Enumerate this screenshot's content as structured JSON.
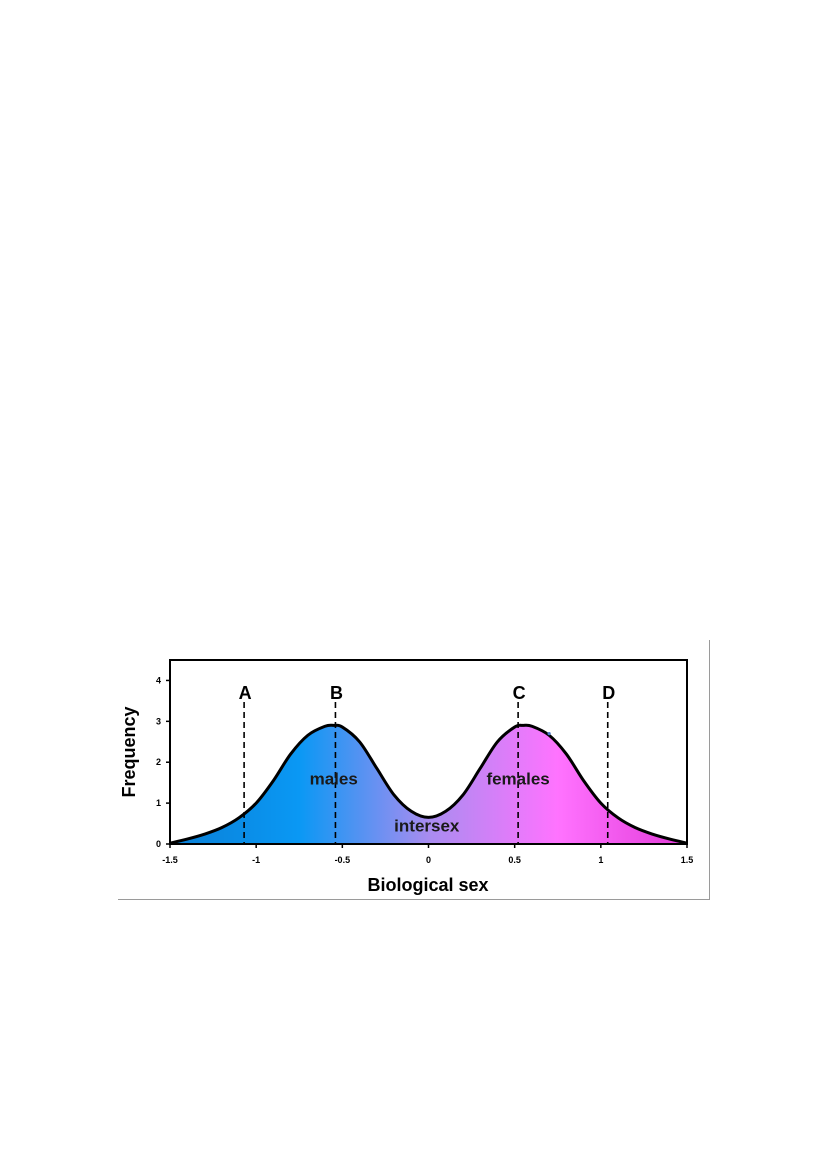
{
  "chart_data": {
    "type": "area",
    "xlabel": "Biological sex",
    "ylabel": "Frequency",
    "xlim": [
      -1.5,
      1.5
    ],
    "ylim": [
      0,
      4.5
    ],
    "x_ticks": [
      -1.5,
      -1,
      -0.5,
      0,
      0.5,
      1,
      1.5
    ],
    "x_tick_labels": [
      "-1.5",
      "-1",
      "-0.5",
      "0",
      "0.5",
      "1",
      "1.5"
    ],
    "y_ticks": [
      0,
      1,
      2,
      3,
      4
    ],
    "y_tick_labels": [
      "0",
      "1",
      "2",
      "3",
      "4"
    ],
    "series": [
      {
        "x": [
          -1.5,
          -1.4,
          -1.3,
          -1.2,
          -1.1,
          -1.0,
          -0.9,
          -0.8,
          -0.7,
          -0.6,
          -0.55,
          -0.5,
          -0.4,
          -0.3,
          -0.2,
          -0.1,
          0.0,
          0.1,
          0.2,
          0.3,
          0.4,
          0.5,
          0.55,
          0.6,
          0.7,
          0.8,
          0.9,
          1.0,
          1.1,
          1.2,
          1.3,
          1.4,
          1.5
        ],
        "y": [
          0.02,
          0.12,
          0.24,
          0.4,
          0.64,
          1.0,
          1.55,
          2.2,
          2.66,
          2.88,
          2.9,
          2.86,
          2.5,
          1.85,
          1.2,
          0.8,
          0.65,
          0.8,
          1.2,
          1.85,
          2.5,
          2.86,
          2.9,
          2.88,
          2.66,
          2.2,
          1.55,
          1.0,
          0.64,
          0.4,
          0.24,
          0.12,
          0.02
        ],
        "fill_gradient": [
          "#0a7fd6",
          "#0a98f4",
          "#a88cf0",
          "#ff73ff",
          "#e23ad8"
        ]
      }
    ],
    "reference_lines": [
      {
        "label": "A",
        "x": -1.07
      },
      {
        "label": "B",
        "x": -0.54
      },
      {
        "label": "C",
        "x": 0.52
      },
      {
        "label": "D",
        "x": 1.04
      }
    ],
    "annotations": [
      {
        "text": "males",
        "x": -0.55,
        "y": 1.45
      },
      {
        "text": "intersex",
        "x": -0.01,
        "y": 0.3
      },
      {
        "text": "females",
        "x": 0.52,
        "y": 1.45
      }
    ],
    "stray_point": {
      "x": 0.7,
      "y": 2.7,
      "color": "#4a78c8"
    },
    "grid": false,
    "legend": "none"
  }
}
